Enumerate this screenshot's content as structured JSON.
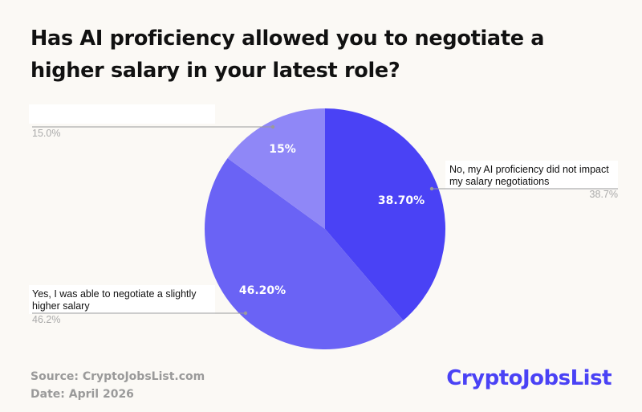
{
  "title": "Has AI proficiency allowed you to negotiate a higher salary in your latest role?",
  "source": "Source: CryptoJobsList.com",
  "date": "Date: April 2026",
  "brand": "CryptoJobsList",
  "chart_data": {
    "type": "pie",
    "title": "Has AI proficiency allowed you to negotiate a higher salary in your latest role?",
    "slices": [
      {
        "label_lines": [
          "No, my AI proficiency did not impact",
          "my salary negotiations"
        ],
        "value": 38.7,
        "inner_label": "38.70%",
        "outer_value": "38.7%",
        "color": "#4a42f5"
      },
      {
        "label_lines": [
          "Yes, I was able to negotiate a slightly",
          "higher salary"
        ],
        "value": 46.2,
        "inner_label": "46.20%",
        "outer_value": "46.2%",
        "color": "#6a63f5"
      },
      {
        "label_lines": [],
        "value": 15.0,
        "inner_label": "15%",
        "outer_value": "15.0%",
        "color": "#8f87f7"
      }
    ],
    "legend": "none"
  }
}
